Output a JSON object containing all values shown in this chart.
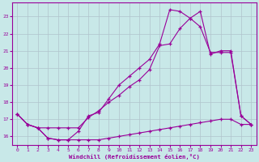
{
  "xlabel": "Windchill (Refroidissement éolien,°C)",
  "x": [
    0,
    1,
    2,
    3,
    4,
    5,
    6,
    7,
    8,
    9,
    10,
    11,
    12,
    13,
    14,
    15,
    16,
    17,
    18,
    19,
    20,
    21,
    22,
    23
  ],
  "line_top": [
    17.3,
    16.7,
    16.5,
    15.9,
    15.8,
    15.8,
    16.3,
    17.2,
    17.4,
    18.2,
    19.0,
    19.5,
    20.0,
    20.5,
    21.4,
    23.4,
    23.3,
    22.9,
    22.4,
    20.9,
    20.9,
    20.9,
    17.2,
    16.7
  ],
  "line_mid": [
    17.3,
    16.7,
    16.5,
    16.5,
    16.5,
    16.5,
    16.5,
    17.1,
    17.5,
    18.0,
    18.4,
    18.9,
    19.3,
    19.9,
    21.3,
    21.4,
    22.3,
    22.9,
    23.3,
    20.8,
    21.0,
    21.0,
    17.2,
    16.7
  ],
  "line_bot": [
    17.3,
    16.7,
    16.5,
    15.9,
    15.8,
    15.8,
    15.8,
    15.8,
    15.8,
    15.9,
    16.0,
    16.1,
    16.2,
    16.3,
    16.4,
    16.5,
    16.6,
    16.7,
    16.8,
    16.9,
    17.0,
    17.0,
    16.7,
    16.7
  ],
  "bg_color": "#c8e8e8",
  "grid_color": "#b0c4cc",
  "line_color": "#990099",
  "ylim": [
    15.5,
    23.8
  ],
  "xlim": [
    -0.5,
    23.5
  ],
  "yticks": [
    16,
    17,
    18,
    19,
    20,
    21,
    22,
    23
  ],
  "xticks": [
    0,
    1,
    2,
    3,
    4,
    5,
    6,
    7,
    8,
    9,
    10,
    11,
    12,
    13,
    14,
    15,
    16,
    17,
    18,
    19,
    20,
    21,
    22,
    23
  ]
}
